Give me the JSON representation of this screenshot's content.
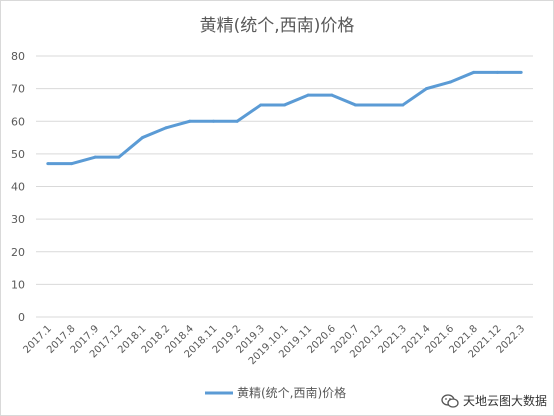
{
  "chart_data": {
    "type": "line",
    "title": "黄精(统个,西南)价格",
    "categories": [
      "2017.1",
      "2017.8",
      "2017.9",
      "2017.12",
      "2018.1",
      "2018.2",
      "2018.4",
      "2018.11",
      "2019.2",
      "2019.3",
      "2019.10.1",
      "2019.11",
      "2020.6",
      "2020.7",
      "2020.12",
      "2021.3",
      "2021.4",
      "2021.6",
      "2021.8",
      "2021.12",
      "2022.3"
    ],
    "series": [
      {
        "name": "黄精(统个,西南)价格",
        "color": "#5b9bd5",
        "values": [
          47,
          47,
          49,
          49,
          55,
          58,
          60,
          60,
          60,
          65,
          65,
          68,
          68,
          65,
          65,
          65,
          70,
          72,
          75,
          75,
          75
        ]
      }
    ],
    "ylim": [
      0,
      80
    ],
    "yticks": [
      0,
      10,
      20,
      30,
      40,
      50,
      60,
      70,
      80
    ],
    "grid": true,
    "legend": "bottom"
  },
  "watermark": {
    "text": "天地云图大数据",
    "icon": "wechat-icon"
  }
}
